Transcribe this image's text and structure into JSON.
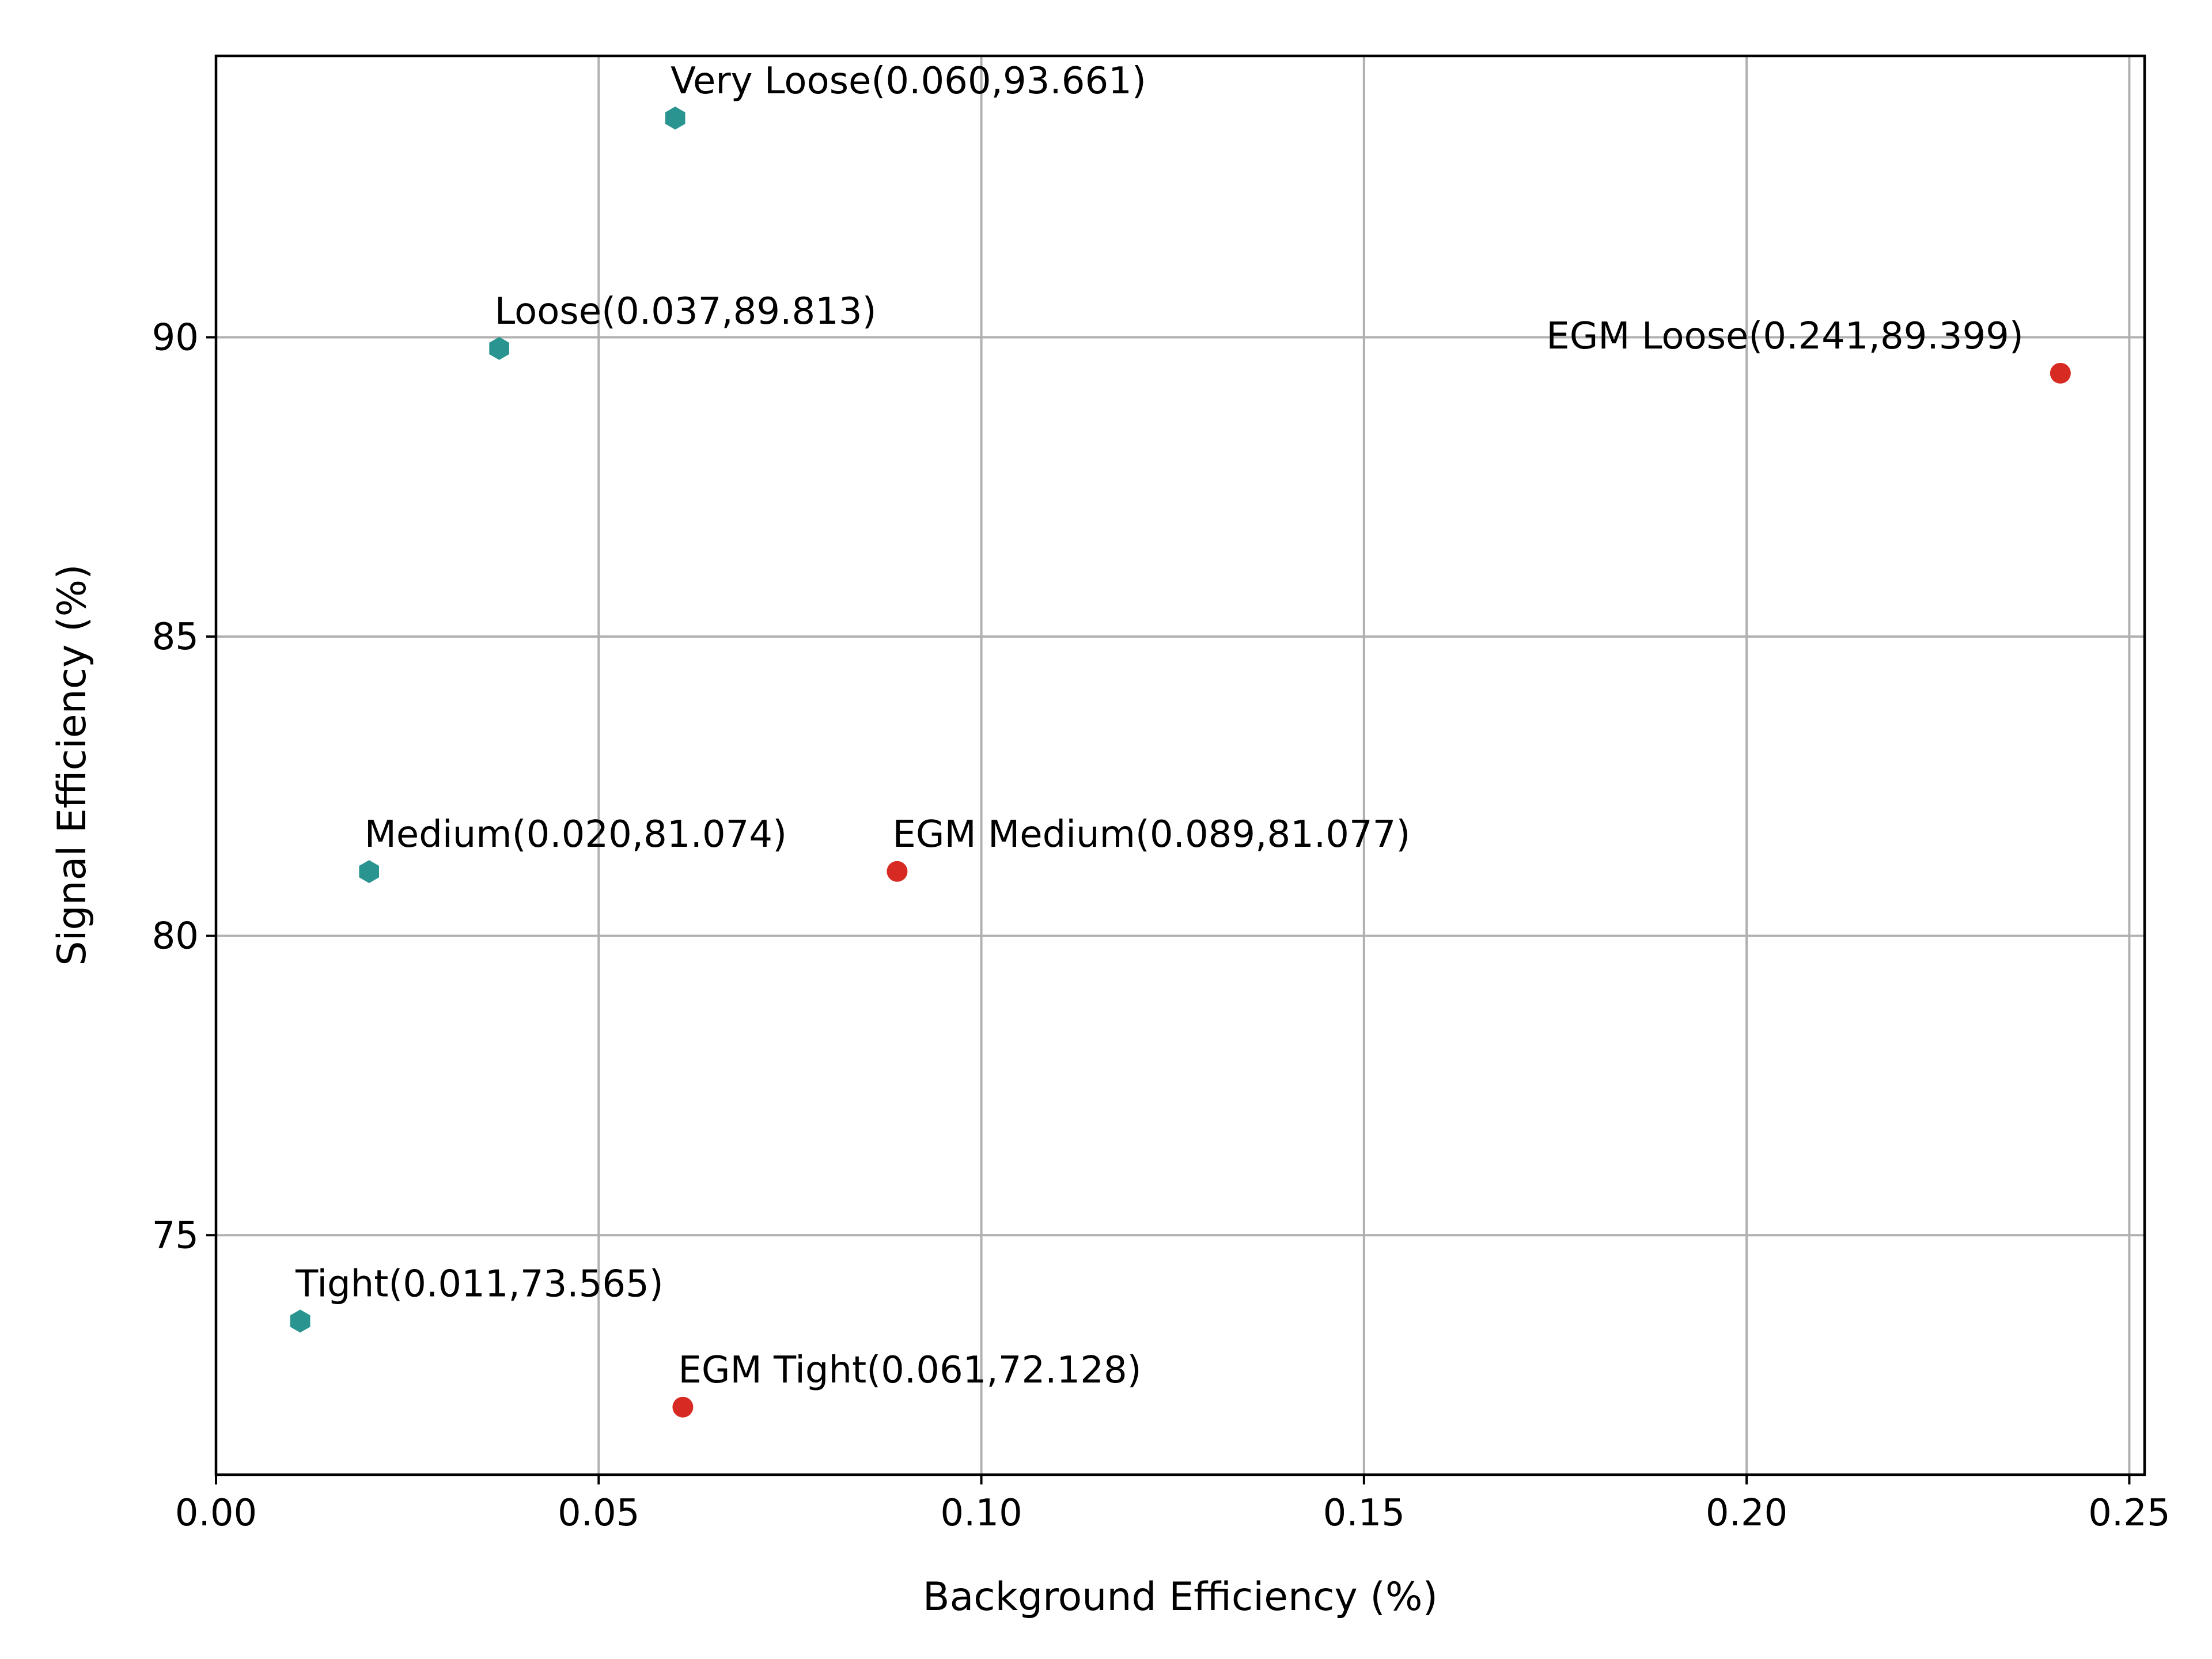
{
  "chart_data": {
    "type": "scatter",
    "title": "",
    "xlabel": "Background Efficiency (%)",
    "ylabel": "Signal Efficiency (%)",
    "xlim": [
      0.0,
      0.252
    ],
    "ylim": [
      71.0,
      94.7
    ],
    "x_ticks": [
      0.0,
      0.05,
      0.1,
      0.15,
      0.2,
      0.25
    ],
    "x_tick_labels": [
      "0.00",
      "0.05",
      "0.10",
      "0.15",
      "0.20",
      "0.25"
    ],
    "y_ticks": [
      75,
      80,
      85,
      90
    ],
    "y_tick_labels": [
      "75",
      "80",
      "85",
      "90"
    ],
    "grid": true,
    "series": [
      {
        "marker": "hexagon",
        "color": "#2a9590",
        "points": [
          {
            "label": "Very Loose(0.060,93.661)",
            "x": 0.06,
            "y": 93.661,
            "anchor": "start"
          },
          {
            "label": "Loose(0.037,89.813)",
            "x": 0.037,
            "y": 89.813,
            "anchor": "start"
          },
          {
            "label": "Medium(0.020,81.074)",
            "x": 0.02,
            "y": 81.074,
            "anchor": "start"
          },
          {
            "label": "Tight(0.011,73.565)",
            "x": 0.011,
            "y": 73.565,
            "anchor": "start"
          }
        ]
      },
      {
        "marker": "circle",
        "color": "#d62a22",
        "points": [
          {
            "label": "EGM Loose(0.241,89.399)",
            "x": 0.241,
            "y": 89.399,
            "anchor": "end"
          },
          {
            "label": "EGM Medium(0.089,81.077)",
            "x": 0.089,
            "y": 81.077,
            "anchor": "start"
          },
          {
            "label": "EGM Tight(0.061,72.128)",
            "x": 0.061,
            "y": 72.128,
            "anchor": "start"
          }
        ]
      }
    ]
  }
}
